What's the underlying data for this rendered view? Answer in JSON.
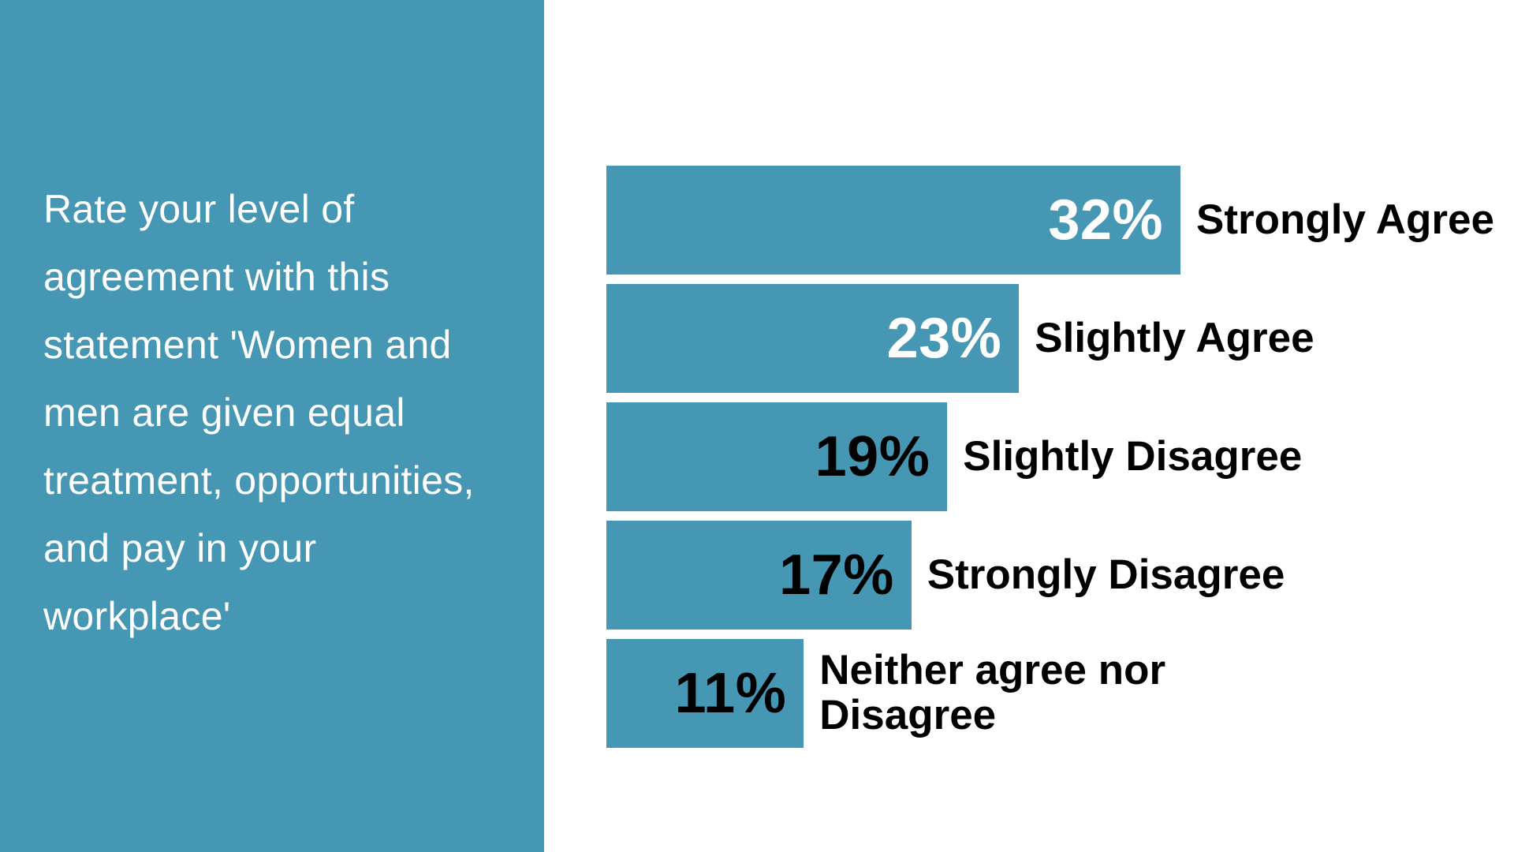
{
  "colors": {
    "panel_bg": "#4697B4",
    "bar_fill": "#4697B4",
    "statement_text": "#FFFFFF",
    "label_text": "#000000"
  },
  "panel": {
    "statement": "Rate your level of\nagreement with this\nstatement 'Women and\nmen are given equal\ntreatment, opportunities,\nand pay in your\nworkplace'"
  },
  "chart_data": {
    "type": "bar",
    "orientation": "horizontal",
    "title": "Rate your level of agreement with this statement 'Women and men are given equal treatment, opportunities, and pay in your workplace'",
    "categories": [
      "Strongly Agree",
      "Slightly Agree",
      "Slightly Disagree",
      "Strongly Disagree",
      "Neither agree nor\nDisagree"
    ],
    "values": [
      32,
      23,
      19,
      17,
      11
    ],
    "value_labels": [
      "32%",
      "23%",
      "19%",
      "17%",
      "11%"
    ],
    "value_label_colors": [
      "#FFFFFF",
      "#FFFFFF",
      "#000000",
      "#000000",
      "#000000"
    ],
    "xlim": [
      0,
      32
    ],
    "grid": false,
    "legend": false,
    "value_label_position": "inside-end",
    "category_label_position": "outside-end"
  }
}
